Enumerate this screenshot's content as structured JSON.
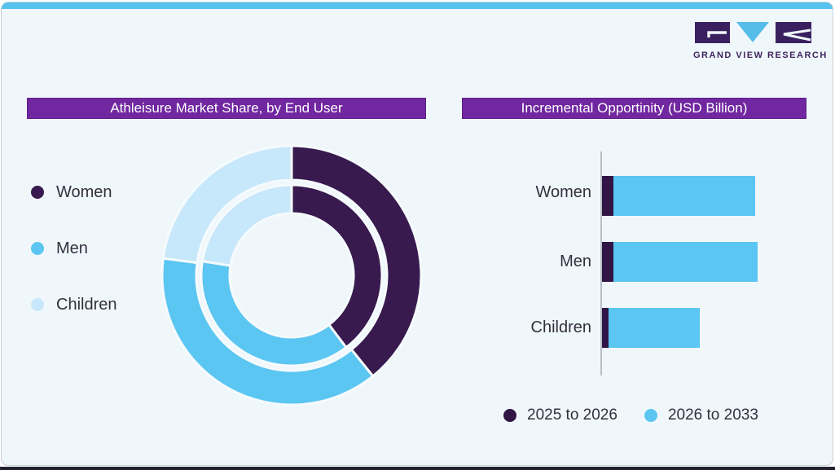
{
  "logo": {
    "brand": "GRAND VIEW RESEARCH",
    "purple": "#3B2060",
    "blue": "#56BDE8"
  },
  "frame": {
    "card_bg": "#F0F7FB",
    "top_bar_color": "#57C2ED",
    "bottom_bar_color": "#23212E",
    "title_bar_color": "#7127A0"
  },
  "left_panel": {
    "title": "Athleisure Market Share, by End User"
  },
  "right_panel": {
    "title": "Incremental Opportinity (USD Billion)"
  },
  "chart_data": [
    {
      "type": "pie",
      "subtype": "double-ring-donut",
      "title": "Athleisure Market Share, by End User",
      "legend": [
        "Women",
        "Men",
        "Children"
      ],
      "legend_position": "left",
      "colors": [
        "#381A4E",
        "#5BC6F2",
        "#C7E7FA"
      ],
      "gap_color": "#F5FAFD",
      "rings": [
        {
          "name": "outer",
          "values": [
            39.2,
            37.9,
            22.9
          ],
          "r_outer": 159,
          "r_inner": 117
        },
        {
          "name": "inner",
          "values": [
            39.7,
            37.8,
            22.5
          ],
          "r_outer": 111,
          "r_inner": 76
        }
      ],
      "units": "percent share, estimated from arc angles (no numeric labels shown)"
    },
    {
      "type": "bar",
      "orientation": "horizontal",
      "stacked": true,
      "title": "Incremental Opportinity (USD Billion)",
      "categories": [
        "Women",
        "Men",
        "Children"
      ],
      "series": [
        {
          "name": "2025 to 2026",
          "color": "#311545",
          "values": [
            14,
            14,
            8
          ]
        },
        {
          "name": "2026 to 2033",
          "color": "#5BC6F2",
          "values": [
            174,
            177,
            112
          ]
        }
      ],
      "xlim": [
        0,
        200
      ],
      "grid": false,
      "axis_numeric_labels_shown": false,
      "legend_position": "bottom",
      "units": "relative length units, estimated (no numeric axis shown)"
    }
  ]
}
